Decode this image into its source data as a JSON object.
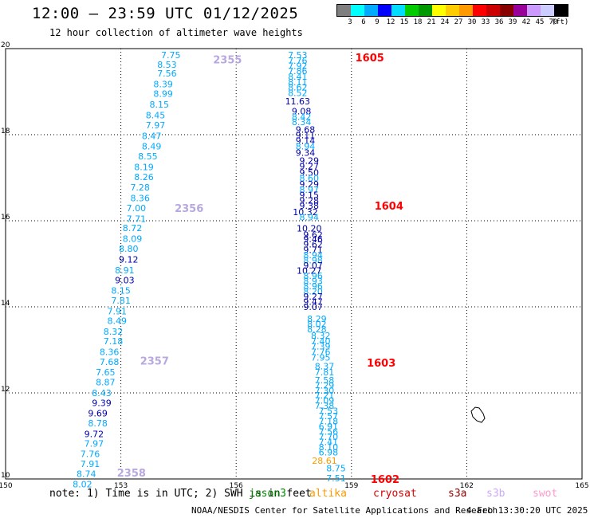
{
  "header": {
    "title": "12:00 — 23:59 UTC 01/12/2025",
    "subtitle": "12 hour collection of altimeter wave heights"
  },
  "legend": {
    "colors": [
      "#7f7f7f",
      "#00ffff",
      "#00aaff",
      "#0000ff",
      "#00ddff",
      "#00cc00",
      "#009900",
      "#ffff00",
      "#ffcc00",
      "#ff9900",
      "#ff0000",
      "#cc0000",
      "#880000",
      "#990099",
      "#cc99ff",
      "#ccccff",
      "#000000"
    ],
    "labels": [
      "3",
      "6",
      "9",
      "12",
      "15",
      "18",
      "21",
      "24",
      "27",
      "30",
      "33",
      "36",
      "39",
      "42",
      "45",
      "70",
      "(ft)"
    ]
  },
  "chart_data": {
    "type": "scatter",
    "x_ticks": [
      "150",
      "153",
      "156",
      "159",
      "162",
      "165"
    ],
    "y_ticks": [
      "10",
      "12",
      "14",
      "16",
      "18",
      "20"
    ],
    "xlim": [
      150,
      165
    ],
    "ylim": [
      10,
      20
    ],
    "grid": true,
    "pass_labels": [
      {
        "text": "2355",
        "lon": 155.4,
        "lat": 19.75,
        "color": "#b8a8e0"
      },
      {
        "text": "2356",
        "lon": 154.4,
        "lat": 16.3,
        "color": "#b8a8e0"
      },
      {
        "text": "2357",
        "lon": 153.5,
        "lat": 12.75,
        "color": "#b8a8e0"
      },
      {
        "text": "2358",
        "lon": 152.9,
        "lat": 10.15,
        "color": "#b8a8e0"
      },
      {
        "text": "1605",
        "lon": 159.1,
        "lat": 19.8,
        "color": "#ff0000"
      },
      {
        "text": "1604",
        "lon": 159.6,
        "lat": 16.35,
        "color": "#ff0000"
      },
      {
        "text": "1603",
        "lon": 159.4,
        "lat": 12.7,
        "color": "#ff0000"
      },
      {
        "text": "1602",
        "lon": 159.5,
        "lat": 10.0,
        "color": "#ff0000"
      }
    ],
    "track_west": [
      {
        "v": "7.75",
        "lon": 154.3,
        "lat": 19.85,
        "c": "#00aaff"
      },
      {
        "v": "8.53",
        "lon": 154.2,
        "lat": 19.63,
        "c": "#00aaff"
      },
      {
        "v": "7.56",
        "lon": 154.2,
        "lat": 19.43,
        "c": "#00aaff"
      },
      {
        "v": "8.39",
        "lon": 154.1,
        "lat": 19.18,
        "c": "#00aaff"
      },
      {
        "v": "8.99",
        "lon": 154.1,
        "lat": 18.95,
        "c": "#00aaff"
      },
      {
        "v": "8.15",
        "lon": 154.0,
        "lat": 18.7,
        "c": "#00aaff"
      },
      {
        "v": "8.45",
        "lon": 153.9,
        "lat": 18.45,
        "c": "#00aaff"
      },
      {
        "v": "7.97",
        "lon": 153.9,
        "lat": 18.22,
        "c": "#00aaff"
      },
      {
        "v": "8.47",
        "lon": 153.8,
        "lat": 17.97,
        "c": "#00aaff"
      },
      {
        "v": "8.49",
        "lon": 153.8,
        "lat": 17.73,
        "c": "#00aaff"
      },
      {
        "v": "8.55",
        "lon": 153.7,
        "lat": 17.5,
        "c": "#00aaff"
      },
      {
        "v": "8.19",
        "lon": 153.6,
        "lat": 17.25,
        "c": "#00aaff"
      },
      {
        "v": "8.26",
        "lon": 153.6,
        "lat": 17.02,
        "c": "#00aaff"
      },
      {
        "v": "7.28",
        "lon": 153.5,
        "lat": 16.78,
        "c": "#00aaff"
      },
      {
        "v": "8.36",
        "lon": 153.5,
        "lat": 16.53,
        "c": "#00aaff"
      },
      {
        "v": "7.00",
        "lon": 153.4,
        "lat": 16.3,
        "c": "#00aaff"
      },
      {
        "v": "7.71",
        "lon": 153.4,
        "lat": 16.05,
        "c": "#00aaff"
      },
      {
        "v": "8.72",
        "lon": 153.3,
        "lat": 15.83,
        "c": "#00aaff"
      },
      {
        "v": "8.09",
        "lon": 153.3,
        "lat": 15.58,
        "c": "#00aaff"
      },
      {
        "v": "8.80",
        "lon": 153.2,
        "lat": 15.35,
        "c": "#00aaff"
      },
      {
        "v": "9.12",
        "lon": 153.2,
        "lat": 15.1,
        "c": "#0000aa"
      },
      {
        "v": "8.91",
        "lon": 153.1,
        "lat": 14.85,
        "c": "#00aaff"
      },
      {
        "v": "9.03",
        "lon": 153.1,
        "lat": 14.62,
        "c": "#0000aa"
      },
      {
        "v": "8.15",
        "lon": 153.0,
        "lat": 14.38,
        "c": "#00aaff"
      },
      {
        "v": "7.81",
        "lon": 153.0,
        "lat": 14.15,
        "c": "#00aaff"
      },
      {
        "v": "7.91",
        "lon": 152.9,
        "lat": 13.9,
        "c": "#00aaff"
      },
      {
        "v": "8.49",
        "lon": 152.9,
        "lat": 13.68,
        "c": "#00aaff"
      },
      {
        "v": "8.32",
        "lon": 152.8,
        "lat": 13.43,
        "c": "#00aaff"
      },
      {
        "v": "7.18",
        "lon": 152.8,
        "lat": 13.2,
        "c": "#00aaff"
      },
      {
        "v": "8.36",
        "lon": 152.7,
        "lat": 12.95,
        "c": "#00aaff"
      },
      {
        "v": "7.68",
        "lon": 152.7,
        "lat": 12.72,
        "c": "#00aaff"
      },
      {
        "v": "7.65",
        "lon": 152.6,
        "lat": 12.48,
        "c": "#00aaff"
      },
      {
        "v": "8.87",
        "lon": 152.6,
        "lat": 12.25,
        "c": "#00aaff"
      },
      {
        "v": "8.43",
        "lon": 152.5,
        "lat": 12.0,
        "c": "#00aaff"
      },
      {
        "v": "9.39",
        "lon": 152.5,
        "lat": 11.77,
        "c": "#0000aa"
      },
      {
        "v": "9.69",
        "lon": 152.4,
        "lat": 11.53,
        "c": "#0000aa"
      },
      {
        "v": "8.78",
        "lon": 152.4,
        "lat": 11.3,
        "c": "#00aaff"
      },
      {
        "v": "9.72",
        "lon": 152.3,
        "lat": 11.05,
        "c": "#0000aa"
      },
      {
        "v": "7.97",
        "lon": 152.3,
        "lat": 10.82,
        "c": "#00aaff"
      },
      {
        "v": "7.76",
        "lon": 152.2,
        "lat": 10.58,
        "c": "#00aaff"
      },
      {
        "v": "7.91",
        "lon": 152.2,
        "lat": 10.35,
        "c": "#00aaff"
      },
      {
        "v": "8.74",
        "lon": 152.1,
        "lat": 10.12,
        "c": "#00aaff"
      },
      {
        "v": "8.02",
        "lon": 152.0,
        "lat": 9.88,
        "c": "#00aaff"
      }
    ],
    "track_east": [
      {
        "v": "7.53",
        "lon": 157.6,
        "lat": 19.85,
        "c": "#00aaff"
      },
      {
        "v": "7.76",
        "lon": 157.6,
        "lat": 19.72,
        "c": "#00aaff"
      },
      {
        "v": "7.92",
        "lon": 157.6,
        "lat": 19.6,
        "c": "#00aaff"
      },
      {
        "v": "7.86",
        "lon": 157.6,
        "lat": 19.48,
        "c": "#00aaff"
      },
      {
        "v": "8.41",
        "lon": 157.6,
        "lat": 19.35,
        "c": "#00aaff"
      },
      {
        "v": "8.11",
        "lon": 157.6,
        "lat": 19.22,
        "c": "#00aaff"
      },
      {
        "v": "8.62",
        "lon": 157.6,
        "lat": 19.1,
        "c": "#00aaff"
      },
      {
        "v": "8.52",
        "lon": 157.6,
        "lat": 18.97,
        "c": "#00aaff"
      },
      {
        "v": "11.63",
        "lon": 157.6,
        "lat": 18.78,
        "c": "#0000aa"
      },
      {
        "v": "9.08",
        "lon": 157.7,
        "lat": 18.55,
        "c": "#0000aa"
      },
      {
        "v": "8.42",
        "lon": 157.7,
        "lat": 18.42,
        "c": "#00aaff"
      },
      {
        "v": "8.34",
        "lon": 157.7,
        "lat": 18.3,
        "c": "#00aaff"
      },
      {
        "v": "9.68",
        "lon": 157.8,
        "lat": 18.12,
        "c": "#0000aa"
      },
      {
        "v": "9.11",
        "lon": 157.8,
        "lat": 17.99,
        "c": "#0000aa"
      },
      {
        "v": "9.14",
        "lon": 157.8,
        "lat": 17.86,
        "c": "#0000aa"
      },
      {
        "v": "8.94",
        "lon": 157.8,
        "lat": 17.73,
        "c": "#00aaff"
      },
      {
        "v": "9.34",
        "lon": 157.8,
        "lat": 17.58,
        "c": "#0000aa"
      },
      {
        "v": "9.29",
        "lon": 157.9,
        "lat": 17.4,
        "c": "#0000aa"
      },
      {
        "v": "9.27",
        "lon": 157.9,
        "lat": 17.27,
        "c": "#0000aa"
      },
      {
        "v": "9.50",
        "lon": 157.9,
        "lat": 17.12,
        "c": "#0000aa"
      },
      {
        "v": "8.60",
        "lon": 157.9,
        "lat": 16.99,
        "c": "#00aaff"
      },
      {
        "v": "9.29",
        "lon": 157.9,
        "lat": 16.85,
        "c": "#0000aa"
      },
      {
        "v": "8.97",
        "lon": 157.9,
        "lat": 16.72,
        "c": "#00aaff"
      },
      {
        "v": "9.15",
        "lon": 157.9,
        "lat": 16.6,
        "c": "#0000aa"
      },
      {
        "v": "9.28",
        "lon": 157.9,
        "lat": 16.47,
        "c": "#0000aa"
      },
      {
        "v": "9.38",
        "lon": 157.9,
        "lat": 16.35,
        "c": "#0000aa"
      },
      {
        "v": "10.32",
        "lon": 157.8,
        "lat": 16.2,
        "c": "#0000aa"
      },
      {
        "v": "8.94",
        "lon": 157.9,
        "lat": 16.08,
        "c": "#00aaff"
      },
      {
        "v": "10.20",
        "lon": 157.9,
        "lat": 15.82,
        "c": "#0000aa"
      },
      {
        "v": "9.62",
        "lon": 158.0,
        "lat": 15.68,
        "c": "#0000aa"
      },
      {
        "v": "9.46",
        "lon": 158.0,
        "lat": 15.57,
        "c": "#0000aa"
      },
      {
        "v": "9.62",
        "lon": 158.0,
        "lat": 15.45,
        "c": "#0000aa"
      },
      {
        "v": "9.71",
        "lon": 158.0,
        "lat": 15.32,
        "c": "#0000aa"
      },
      {
        "v": "8.94",
        "lon": 158.0,
        "lat": 15.2,
        "c": "#00aaff"
      },
      {
        "v": "8.98",
        "lon": 158.0,
        "lat": 15.08,
        "c": "#00aaff"
      },
      {
        "v": "9.07",
        "lon": 158.0,
        "lat": 14.96,
        "c": "#0000aa"
      },
      {
        "v": "10.27",
        "lon": 157.9,
        "lat": 14.84,
        "c": "#0000aa"
      },
      {
        "v": "8.96",
        "lon": 158.0,
        "lat": 14.72,
        "c": "#00aaff"
      },
      {
        "v": "8.93",
        "lon": 158.0,
        "lat": 14.6,
        "c": "#00aaff"
      },
      {
        "v": "8.96",
        "lon": 158.0,
        "lat": 14.48,
        "c": "#00aaff"
      },
      {
        "v": "8.20",
        "lon": 158.0,
        "lat": 14.36,
        "c": "#00aaff"
      },
      {
        "v": "9.27",
        "lon": 158.0,
        "lat": 14.24,
        "c": "#0000aa"
      },
      {
        "v": "9.47",
        "lon": 158.0,
        "lat": 14.12,
        "c": "#0000aa"
      },
      {
        "v": "9.07",
        "lon": 158.0,
        "lat": 14.0,
        "c": "#0000aa"
      },
      {
        "v": "8.29",
        "lon": 158.1,
        "lat": 13.72,
        "c": "#00aaff"
      },
      {
        "v": "8.02",
        "lon": 158.1,
        "lat": 13.6,
        "c": "#00aaff"
      },
      {
        "v": "8.28",
        "lon": 158.1,
        "lat": 13.48,
        "c": "#00aaff"
      },
      {
        "v": "8.32",
        "lon": 158.2,
        "lat": 13.33,
        "c": "#00aaff"
      },
      {
        "v": "7.40",
        "lon": 158.2,
        "lat": 13.2,
        "c": "#00aaff"
      },
      {
        "v": "7.39",
        "lon": 158.2,
        "lat": 13.08,
        "c": "#00aaff"
      },
      {
        "v": "7.76",
        "lon": 158.2,
        "lat": 12.95,
        "c": "#00aaff"
      },
      {
        "v": "7.95",
        "lon": 158.2,
        "lat": 12.82,
        "c": "#00aaff"
      },
      {
        "v": "8.37",
        "lon": 158.3,
        "lat": 12.62,
        "c": "#00aaff"
      },
      {
        "v": "7.81",
        "lon": 158.3,
        "lat": 12.48,
        "c": "#00aaff"
      },
      {
        "v": "7.58",
        "lon": 158.3,
        "lat": 12.3,
        "c": "#00aaff"
      },
      {
        "v": "7.29",
        "lon": 158.3,
        "lat": 12.18,
        "c": "#00aaff"
      },
      {
        "v": "7.30",
        "lon": 158.3,
        "lat": 12.06,
        "c": "#00aaff"
      },
      {
        "v": "7.21",
        "lon": 158.3,
        "lat": 11.94,
        "c": "#00aaff"
      },
      {
        "v": "7.09",
        "lon": 158.3,
        "lat": 11.82,
        "c": "#00aaff"
      },
      {
        "v": "7.38",
        "lon": 158.3,
        "lat": 11.7,
        "c": "#00aaff"
      },
      {
        "v": "7.53",
        "lon": 158.4,
        "lat": 11.58,
        "c": "#00aaff"
      },
      {
        "v": "7.57",
        "lon": 158.4,
        "lat": 11.46,
        "c": "#00aaff"
      },
      {
        "v": "7.18",
        "lon": 158.4,
        "lat": 11.34,
        "c": "#00aaff"
      },
      {
        "v": "6.91",
        "lon": 158.4,
        "lat": 11.22,
        "c": "#00aaff"
      },
      {
        "v": "7.56",
        "lon": 158.4,
        "lat": 11.1,
        "c": "#00aaff"
      },
      {
        "v": "7.70",
        "lon": 158.4,
        "lat": 10.98,
        "c": "#00aaff"
      },
      {
        "v": "7.41",
        "lon": 158.4,
        "lat": 10.86,
        "c": "#00aaff"
      },
      {
        "v": "8.10",
        "lon": 158.4,
        "lat": 10.74,
        "c": "#00aaff"
      },
      {
        "v": "6.98",
        "lon": 158.4,
        "lat": 10.62,
        "c": "#00aaff"
      },
      {
        "v": "28.61",
        "lon": 158.3,
        "lat": 10.43,
        "c": "#ff9900"
      },
      {
        "v": "8.75",
        "lon": 158.6,
        "lat": 10.25,
        "c": "#00aaff"
      },
      {
        "v": "7.51",
        "lon": 158.6,
        "lat": 10.02,
        "c": "#00aaff"
      }
    ]
  },
  "footer": {
    "note": "note: 1) Time is in UTC; 2) SWH is in feet",
    "satellites": [
      {
        "name": "jason3",
        "color": "#008800"
      },
      {
        "name": "altika",
        "color": "#ff9900"
      },
      {
        "name": "cryosat",
        "color": "#dd0000"
      },
      {
        "name": "s3a",
        "color": "#990000"
      },
      {
        "name": "s3b",
        "color": "#ccaaff"
      },
      {
        "name": "swot",
        "color": "#ff99cc"
      }
    ],
    "credit": "NOAA/NESDIS Center for Satellite Applications and Research",
    "timestamp": "4 Feb 13:30:20 UTC 2025"
  }
}
